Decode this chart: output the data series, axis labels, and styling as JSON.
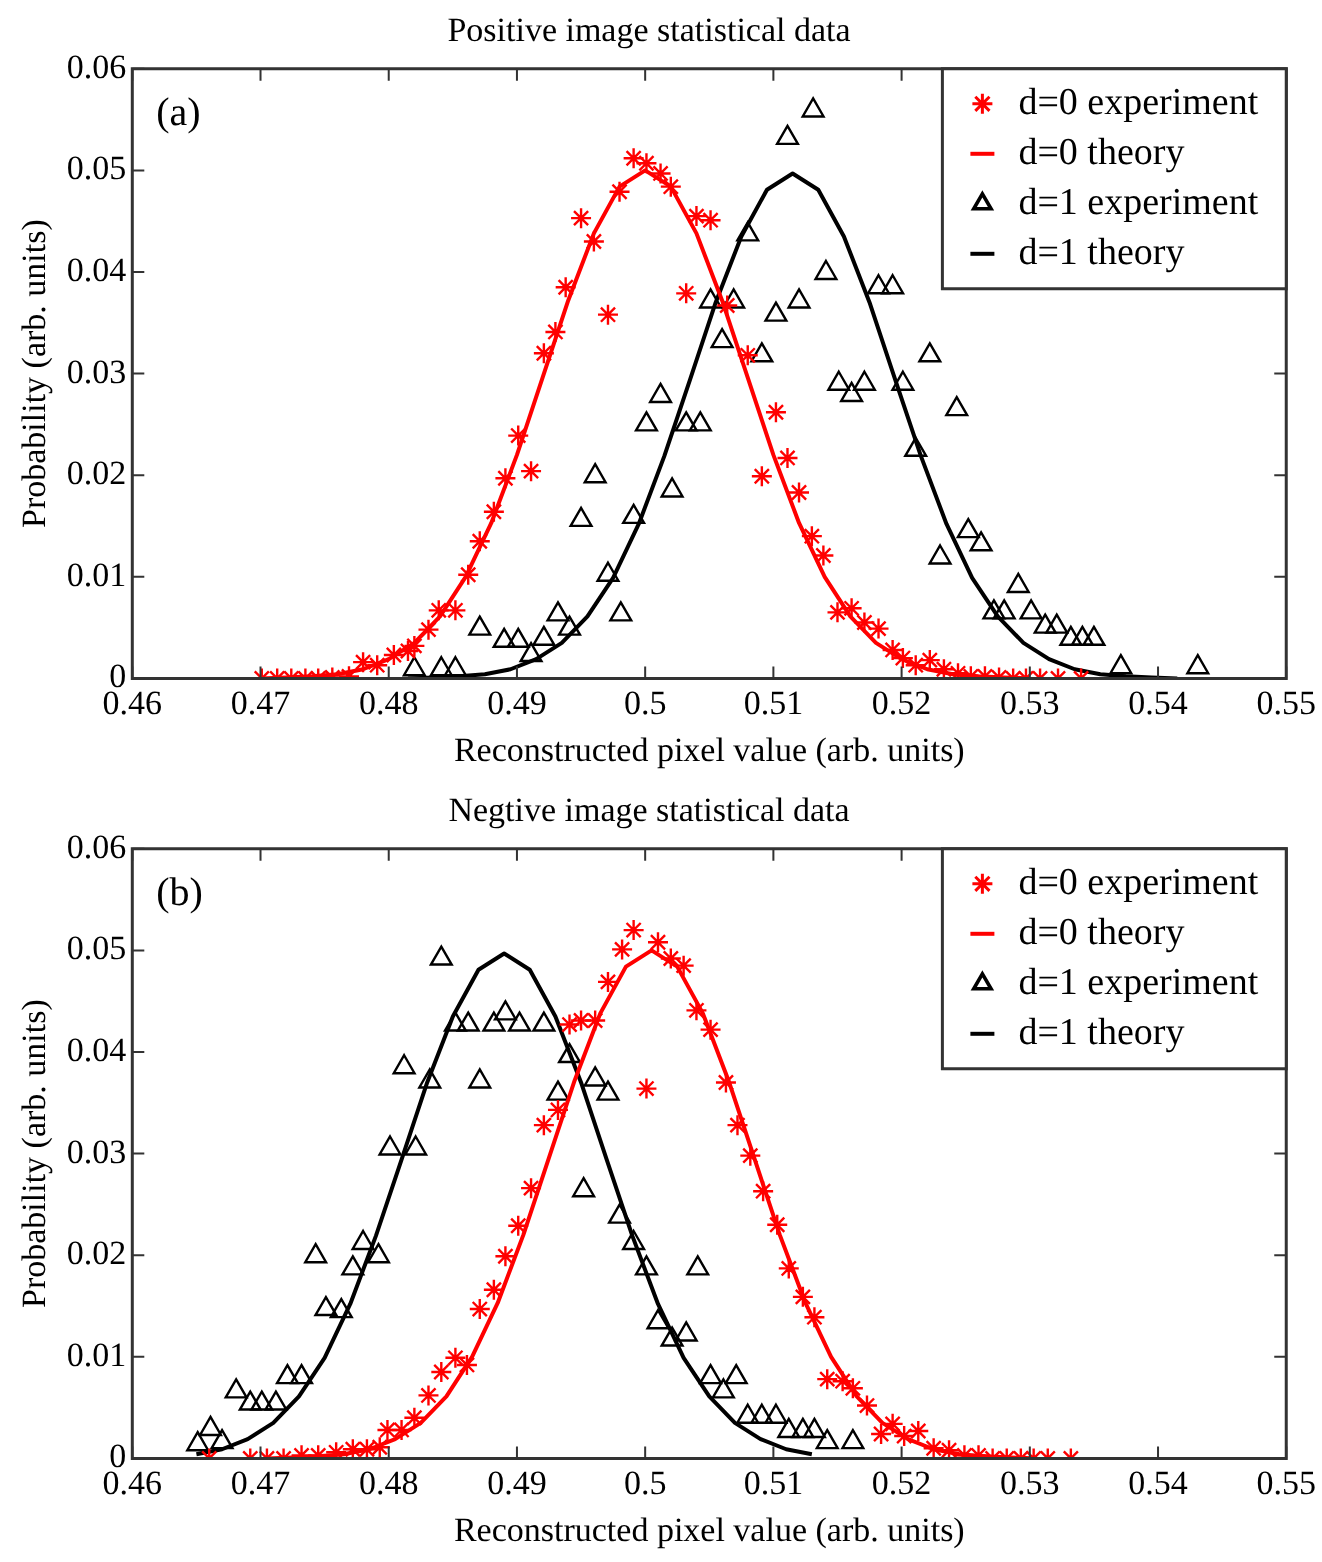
{
  "chart_data": [
    {
      "type": "scatter",
      "title": "Positive image statistical data",
      "xlabel": "Reconstructed pixel value (arb. units)",
      "ylabel": "Probability (arb. units)",
      "annotations": [
        "(a)"
      ],
      "xlim": [
        0.46,
        0.55
      ],
      "xticks": [
        0.46,
        0.47,
        0.48,
        0.49,
        0.5,
        0.51,
        0.52,
        0.53,
        0.54,
        0.55
      ],
      "ylim": [
        0,
        0.06
      ],
      "yticks": [
        0,
        0.01,
        0.02,
        0.03,
        0.04,
        0.05,
        0.06
      ],
      "grid": false,
      "legend": "top right",
      "series": [
        {
          "name": "d=0 experiment",
          "marker": "cross",
          "color": "#ff0000",
          "x": [
            0.4701,
            0.4713,
            0.4724,
            0.4735,
            0.4745,
            0.4756,
            0.4769,
            0.478,
            0.4791,
            0.4804,
            0.4815,
            0.482,
            0.4831,
            0.4839,
            0.4852,
            0.4862,
            0.4871,
            0.4882,
            0.4891,
            0.4901,
            0.4911,
            0.4921,
            0.493,
            0.4938,
            0.495,
            0.496,
            0.4971,
            0.498,
            0.4991,
            0.5001,
            0.5012,
            0.502,
            0.5032,
            0.504,
            0.5051,
            0.5064,
            0.508,
            0.5091,
            0.5102,
            0.5111,
            0.512,
            0.513,
            0.5139,
            0.515,
            0.5161,
            0.5171,
            0.5182,
            0.5193,
            0.5201,
            0.5211,
            0.5222,
            0.5233,
            0.5244,
            0.5254,
            0.5265,
            0.5276,
            0.5287,
            0.5297,
            0.5308,
            0.5322,
            0.534
          ],
          "values": [
            0,
            0,
            0,
            0,
            0,
            0.0001,
            0.0002,
            0.0016,
            0.0013,
            0.0023,
            0.0027,
            0.0032,
            0.0048,
            0.0067,
            0.0067,
            0.0102,
            0.0135,
            0.0164,
            0.0197,
            0.0239,
            0.0204,
            0.032,
            0.0341,
            0.0385,
            0.0453,
            0.043,
            0.0358,
            0.0479,
            0.0512,
            0.0507,
            0.0497,
            0.0484,
            0.0379,
            0.0455,
            0.0451,
            0.0367,
            0.0318,
            0.0199,
            0.0262,
            0.0217,
            0.0183,
            0.014,
            0.0121,
            0.0065,
            0.0069,
            0.0055,
            0.0049,
            0.0028,
            0.002,
            0.0013,
            0.0018,
            0.0009,
            0.0005,
            0.0002,
            0.0002,
            0.0001,
            0,
            0,
            0,
            0,
            0
          ]
        },
        {
          "name": "d=0 theory",
          "type": "line",
          "marker": "none",
          "color": "#ff0000",
          "x": [
            0.47,
            0.472,
            0.474,
            0.476,
            0.478,
            0.48,
            0.482,
            0.484,
            0.486,
            0.488,
            0.49,
            0.492,
            0.494,
            0.496,
            0.498,
            0.5,
            0.502,
            0.504,
            0.506,
            0.508,
            0.51,
            0.512,
            0.514,
            0.516,
            0.518,
            0.52,
            0.522,
            0.524,
            0.526,
            0.528,
            0.53
          ],
          "values": [
            0,
            0.0001,
            0.0002,
            0.0004,
            0.0009,
            0.0019,
            0.0035,
            0.0061,
            0.01,
            0.0153,
            0.022,
            0.0296,
            0.0372,
            0.0438,
            0.0484,
            0.05,
            0.0484,
            0.0438,
            0.0372,
            0.0296,
            0.022,
            0.0153,
            0.01,
            0.0061,
            0.0035,
            0.0019,
            0.0009,
            0.0004,
            0.0002,
            0.0001,
            0
          ]
        },
        {
          "name": "d=1 experiment",
          "marker": "triangle",
          "color": "#000000",
          "x": [
            0.482,
            0.4841,
            0.4852,
            0.4871,
            0.489,
            0.4901,
            0.4911,
            0.4921,
            0.4932,
            0.4941,
            0.495,
            0.4961,
            0.4971,
            0.4981,
            0.4991,
            0.5001,
            0.5012,
            0.5021,
            0.5032,
            0.5043,
            0.5051,
            0.506,
            0.5069,
            0.508,
            0.5091,
            0.5102,
            0.5111,
            0.512,
            0.5131,
            0.5141,
            0.5151,
            0.5161,
            0.5171,
            0.5182,
            0.5193,
            0.5201,
            0.5211,
            0.5222,
            0.523,
            0.5243,
            0.5252,
            0.5262,
            0.5272,
            0.528,
            0.5291,
            0.5301,
            0.5312,
            0.5321,
            0.5332,
            0.5341,
            0.535,
            0.5371,
            0.5431
          ],
          "values": [
            0.0009,
            0.0009,
            0.0009,
            0.0049,
            0.0037,
            0.0037,
            0.0023,
            0.0039,
            0.0063,
            0.0049,
            0.0156,
            0.0199,
            0.0102,
            0.0063,
            0.0159,
            0.025,
            0.0278,
            0.0185,
            0.025,
            0.025,
            0.0371,
            0.0332,
            0.0371,
            0.0437,
            0.0318,
            0.0358,
            0.0532,
            0.0371,
            0.0559,
            0.0399,
            0.029,
            0.0279,
            0.029,
            0.0385,
            0.0385,
            0.029,
            0.0225,
            0.0318,
            0.0119,
            0.0265,
            0.0145,
            0.0132,
            0.0065,
            0.0065,
            0.0091,
            0.0065,
            0.0051,
            0.0051,
            0.0039,
            0.0039,
            0.0039,
            0.0011,
            0.0011
          ]
        },
        {
          "name": "d=1 theory",
          "type": "line",
          "marker": "none",
          "color": "#000000",
          "x": [
            0.4815,
            0.4835,
            0.4855,
            0.4875,
            0.4895,
            0.4915,
            0.4935,
            0.4955,
            0.4975,
            0.4995,
            0.5015,
            0.5035,
            0.5055,
            0.5075,
            0.5095,
            0.5115,
            0.5135,
            0.5155,
            0.5175,
            0.5195,
            0.5215,
            0.5235,
            0.5255,
            0.5275,
            0.5295,
            0.5315,
            0.5335,
            0.5355,
            0.5375,
            0.5395,
            0.5415
          ],
          "values": [
            0,
            0.0001,
            0.0002,
            0.0004,
            0.0009,
            0.0019,
            0.0035,
            0.0061,
            0.0099,
            0.0152,
            0.0219,
            0.0294,
            0.037,
            0.0435,
            0.0481,
            0.0497,
            0.0481,
            0.0435,
            0.037,
            0.0294,
            0.0219,
            0.0152,
            0.0099,
            0.0061,
            0.0035,
            0.0019,
            0.0009,
            0.0004,
            0.0002,
            0.0001,
            0
          ]
        }
      ]
    },
    {
      "type": "scatter",
      "title": "Negtive image statistical data",
      "xlabel": "Reconstructed pixel value (arb. units)",
      "ylabel": "Probability (arb. units)",
      "annotations": [
        "(b)"
      ],
      "xlim": [
        0.46,
        0.55
      ],
      "xticks": [
        0.46,
        0.47,
        0.48,
        0.49,
        0.5,
        0.51,
        0.52,
        0.53,
        0.54,
        0.55
      ],
      "ylim": [
        0,
        0.06
      ],
      "yticks": [
        0,
        0.01,
        0.02,
        0.03,
        0.04,
        0.05,
        0.06
      ],
      "grid": false,
      "legend": "top right",
      "series": [
        {
          "name": "d=0 experiment",
          "marker": "cross",
          "color": "#ff0000",
          "x": [
            0.466,
            0.4692,
            0.4705,
            0.4718,
            0.4732,
            0.4745,
            0.4759,
            0.4772,
            0.4783,
            0.4793,
            0.4799,
            0.481,
            0.482,
            0.4831,
            0.4841,
            0.4852,
            0.4861,
            0.4871,
            0.4882,
            0.4891,
            0.4901,
            0.4911,
            0.4921,
            0.4932,
            0.4941,
            0.495,
            0.4961,
            0.4971,
            0.4982,
            0.4991,
            0.5001,
            0.501,
            0.502,
            0.503,
            0.504,
            0.5051,
            0.5063,
            0.5072,
            0.5082,
            0.5092,
            0.5103,
            0.5112,
            0.5123,
            0.5132,
            0.5142,
            0.5154,
            0.5162,
            0.5173,
            0.5184,
            0.5193,
            0.5202,
            0.5213,
            0.5225,
            0.5237,
            0.5249,
            0.526,
            0.5271,
            0.5282,
            0.5293,
            0.5303,
            0.5314,
            0.5332
          ],
          "values": [
            0,
            0,
            0,
            0,
            0.0003,
            0.0003,
            0.0006,
            0.0009,
            0.0009,
            0.0011,
            0.0028,
            0.0028,
            0.004,
            0.0062,
            0.0085,
            0.0099,
            0.0092,
            0.0147,
            0.0166,
            0.0199,
            0.0229,
            0.0266,
            0.0328,
            0.0343,
            0.0427,
            0.0431,
            0.0431,
            0.0469,
            0.0501,
            0.052,
            0.0364,
            0.0508,
            0.0492,
            0.0485,
            0.0441,
            0.0422,
            0.037,
            0.0328,
            0.0298,
            0.0263,
            0.023,
            0.0187,
            0.0159,
            0.0139,
            0.0078,
            0.0076,
            0.0069,
            0.0052,
            0.0024,
            0.0034,
            0.0022,
            0.0027,
            0.001,
            0.0008,
            0.0003,
            0.0003,
            0,
            0,
            0,
            0,
            0,
            0
          ]
        },
        {
          "name": "d=0 theory",
          "type": "line",
          "marker": "none",
          "color": "#ff0000",
          "x": [
            0.4705,
            0.4725,
            0.4745,
            0.4765,
            0.4785,
            0.4805,
            0.4825,
            0.4845,
            0.4865,
            0.4885,
            0.4905,
            0.4925,
            0.4945,
            0.4965,
            0.4985,
            0.5005,
            0.5025,
            0.5045,
            0.5065,
            0.5085,
            0.5105,
            0.5125,
            0.5145,
            0.5165,
            0.5185,
            0.5205,
            0.5225,
            0.5245,
            0.5265,
            0.5285,
            0.5305
          ],
          "values": [
            0,
            0.0001,
            0.0002,
            0.0004,
            0.0009,
            0.0019,
            0.0035,
            0.0061,
            0.01,
            0.0153,
            0.022,
            0.0296,
            0.0372,
            0.0438,
            0.0484,
            0.05,
            0.0484,
            0.0438,
            0.0372,
            0.0296,
            0.022,
            0.0153,
            0.01,
            0.0061,
            0.0035,
            0.0019,
            0.0009,
            0.0004,
            0.0002,
            0.0001,
            0
          ]
        },
        {
          "name": "d=1 experiment",
          "marker": "triangle",
          "color": "#000000",
          "x": [
            0.4651,
            0.4661,
            0.467,
            0.4681,
            0.4692,
            0.4701,
            0.4712,
            0.4721,
            0.4732,
            0.4743,
            0.4751,
            0.4763,
            0.4772,
            0.478,
            0.4792,
            0.4801,
            0.4812,
            0.4821,
            0.4832,
            0.4841,
            0.4852,
            0.4862,
            0.4871,
            0.4882,
            0.4891,
            0.4902,
            0.4921,
            0.4932,
            0.4941,
            0.4952,
            0.4961,
            0.4971,
            0.498,
            0.4991,
            0.5001,
            0.501,
            0.5021,
            0.5032,
            0.5041,
            0.5051,
            0.5061,
            0.5071,
            0.508,
            0.5091,
            0.5102,
            0.5112,
            0.5123,
            0.5132,
            0.5142,
            0.5162
          ],
          "values": [
            0.0014,
            0.0029,
            0.0016,
            0.0066,
            0.0054,
            0.0054,
            0.0054,
            0.008,
            0.008,
            0.0199,
            0.0147,
            0.0145,
            0.0187,
            0.0212,
            0.0199,
            0.0305,
            0.0385,
            0.0305,
            0.0371,
            0.0492,
            0.0427,
            0.0427,
            0.0371,
            0.0427,
            0.0438,
            0.0427,
            0.0427,
            0.0359,
            0.0396,
            0.0264,
            0.0373,
            0.0359,
            0.0238,
            0.0212,
            0.0187,
            0.0134,
            0.0117,
            0.0122,
            0.0187,
            0.008,
            0.0066,
            0.008,
            0.0041,
            0.0041,
            0.0041,
            0.0027,
            0.0027,
            0.0027,
            0.0016,
            0.0016
          ]
        },
        {
          "name": "d=1 theory",
          "type": "line",
          "marker": "none",
          "color": "#000000",
          "x": [
            0.465,
            0.467,
            0.469,
            0.471,
            0.473,
            0.475,
            0.477,
            0.479,
            0.481,
            0.483,
            0.485,
            0.487,
            0.489,
            0.491,
            0.493,
            0.495,
            0.497,
            0.499,
            0.501,
            0.503,
            0.505,
            0.507,
            0.509,
            0.511,
            0.513
          ],
          "values": [
            0.0004,
            0.0009,
            0.0019,
            0.0035,
            0.0061,
            0.0099,
            0.0152,
            0.0219,
            0.0294,
            0.037,
            0.0435,
            0.0481,
            0.0497,
            0.0481,
            0.0435,
            0.037,
            0.0294,
            0.0219,
            0.0152,
            0.0099,
            0.0061,
            0.0035,
            0.0019,
            0.0009,
            0.0004
          ]
        }
      ]
    }
  ]
}
